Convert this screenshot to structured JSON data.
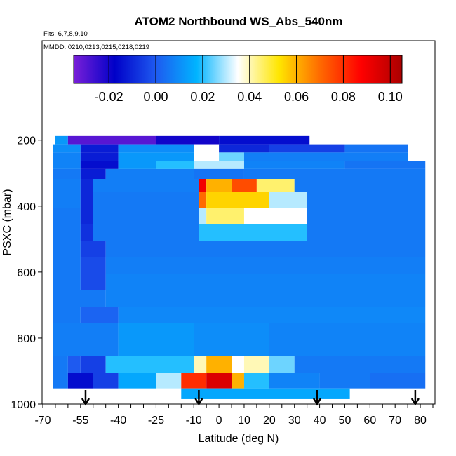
{
  "chart_data": {
    "type": "heatmap",
    "title": "ATOM2 Northbound WS_Abs_540nm",
    "flights_note": "Flts: 6,7,8,9,10",
    "dates_note": "MMDD: 0210,0213,0215,0218,0219",
    "xlabel": "Latitude (deg N)",
    "ylabel": "PSXC (mbar)",
    "xlim": [
      -70,
      85
    ],
    "ylim": [
      1000,
      90
    ],
    "y_reversed": true,
    "x_tick_labels": [
      "-70",
      "-55",
      "-40",
      "-25",
      "-10",
      "0",
      "10",
      "20",
      "30",
      "40",
      "50",
      "60",
      "70",
      "80"
    ],
    "y_tick_labels": [
      "200",
      "400",
      "600",
      "800",
      "1000"
    ],
    "colorbar": {
      "range": [
        -0.035,
        0.105
      ],
      "tick_labels": [
        "-0.02",
        "0.00",
        "0.02",
        "0.04",
        "0.06",
        "0.08",
        "0.10"
      ],
      "stops": [
        "#7a1fd8",
        "#0000c8",
        "#1e5af0",
        "#00b4ff",
        "#ffffff",
        "#ffe600",
        "#ff6a00",
        "#ff0000",
        "#aa0000"
      ]
    },
    "arrow_latitudes": [
      -53,
      -8,
      39,
      78
    ],
    "rows": [
      {
        "p": 200,
        "segs": [
          [
            -65,
            -60,
            0.012
          ],
          [
            -60,
            -25,
            -0.03
          ],
          [
            -25,
            0,
            -0.02
          ],
          [
            0,
            36,
            -0.015
          ]
        ]
      },
      {
        "p": 225,
        "segs": [
          [
            -66,
            -55,
            0.01
          ],
          [
            -55,
            -40,
            -0.012
          ],
          [
            -40,
            -10,
            0.01
          ],
          [
            -10,
            0,
            0.035
          ],
          [
            0,
            20,
            -0.01
          ],
          [
            20,
            50,
            -0.005
          ],
          [
            50,
            75,
            0.005
          ]
        ]
      },
      {
        "p": 250,
        "segs": [
          [
            -66,
            -55,
            0.008
          ],
          [
            -55,
            -40,
            -0.012
          ],
          [
            -40,
            -10,
            0.012
          ],
          [
            -10,
            0,
            0.035
          ],
          [
            0,
            10,
            0.025
          ],
          [
            10,
            75,
            0.007
          ]
        ]
      },
      {
        "p": 275,
        "segs": [
          [
            -66,
            -55,
            0.008
          ],
          [
            -55,
            -40,
            -0.015
          ],
          [
            -40,
            -25,
            0.012
          ],
          [
            -25,
            -10,
            0.02
          ],
          [
            -10,
            10,
            0.03
          ],
          [
            10,
            50,
            0.008
          ],
          [
            50,
            82,
            0.005
          ]
        ]
      },
      {
        "p": 300,
        "segs": [
          [
            -66,
            -55,
            0.006
          ],
          [
            -55,
            -45,
            -0.012
          ],
          [
            -45,
            -10,
            0.007
          ],
          [
            -10,
            10,
            0.005
          ],
          [
            10,
            82,
            0.006
          ]
        ]
      },
      {
        "p": 335,
        "segs": [
          [
            -66,
            -55,
            0.007
          ],
          [
            -55,
            -50,
            -0.01
          ],
          [
            -50,
            -8,
            0.007
          ],
          [
            -8,
            -5,
            0.09
          ],
          [
            -5,
            5,
            0.06
          ],
          [
            5,
            15,
            0.075
          ],
          [
            15,
            30,
            0.045
          ],
          [
            30,
            82,
            0.006
          ]
        ]
      },
      {
        "p": 380,
        "segs": [
          [
            -66,
            -55,
            0.007
          ],
          [
            -55,
            -50,
            -0.01
          ],
          [
            -50,
            -8,
            0.006
          ],
          [
            -8,
            -5,
            0.07
          ],
          [
            -5,
            20,
            0.055
          ],
          [
            20,
            35,
            0.03
          ],
          [
            35,
            82,
            0.006
          ]
        ]
      },
      {
        "p": 430,
        "segs": [
          [
            -66,
            -55,
            0.006
          ],
          [
            -55,
            -50,
            -0.01
          ],
          [
            -50,
            -8,
            0.006
          ],
          [
            -8,
            -5,
            0.03
          ],
          [
            -5,
            10,
            0.045
          ],
          [
            10,
            35,
            0.035
          ],
          [
            35,
            82,
            0.006
          ]
        ]
      },
      {
        "p": 480,
        "segs": [
          [
            -66,
            -55,
            0.006
          ],
          [
            -55,
            -50,
            -0.008
          ],
          [
            -50,
            -8,
            0.006
          ],
          [
            -8,
            35,
            0.02
          ],
          [
            35,
            82,
            0.006
          ]
        ]
      },
      {
        "p": 530,
        "segs": [
          [
            -66,
            -55,
            0.006
          ],
          [
            -55,
            -45,
            -0.005
          ],
          [
            -45,
            82,
            0.006
          ]
        ]
      },
      {
        "p": 580,
        "segs": [
          [
            -66,
            -55,
            0.006
          ],
          [
            -55,
            -45,
            -0.003
          ],
          [
            -45,
            82,
            0.007
          ]
        ]
      },
      {
        "p": 630,
        "segs": [
          [
            -66,
            -55,
            0.006
          ],
          [
            -55,
            -45,
            -0.003
          ],
          [
            -45,
            82,
            0.008
          ]
        ]
      },
      {
        "p": 680,
        "segs": [
          [
            -66,
            -45,
            0.006
          ],
          [
            -45,
            82,
            0.008
          ]
        ]
      },
      {
        "p": 730,
        "segs": [
          [
            -66,
            -55,
            0.006
          ],
          [
            -55,
            -40,
            0.002
          ],
          [
            -40,
            82,
            0.009
          ]
        ]
      },
      {
        "p": 780,
        "segs": [
          [
            -66,
            -40,
            0.007
          ],
          [
            -40,
            -10,
            0.012
          ],
          [
            -10,
            20,
            0.01
          ],
          [
            20,
            82,
            0.008
          ]
        ]
      },
      {
        "p": 830,
        "segs": [
          [
            -66,
            -40,
            0.007
          ],
          [
            -40,
            -10,
            0.012
          ],
          [
            -10,
            20,
            0.01
          ],
          [
            20,
            82,
            0.008
          ]
        ]
      },
      {
        "p": 880,
        "segs": [
          [
            -66,
            -60,
            0.006
          ],
          [
            -60,
            -55,
            0.0
          ],
          [
            -55,
            -45,
            -0.005
          ],
          [
            -45,
            -10,
            0.02
          ],
          [
            -10,
            -5,
            0.04
          ],
          [
            -5,
            5,
            0.06
          ],
          [
            5,
            10,
            0.035
          ],
          [
            10,
            20,
            0.04
          ],
          [
            20,
            30,
            0.025
          ],
          [
            30,
            82,
            0.006
          ]
        ]
      },
      {
        "p": 930,
        "segs": [
          [
            -66,
            -60,
            0.006
          ],
          [
            -60,
            -50,
            -0.015
          ],
          [
            -50,
            -40,
            -0.005
          ],
          [
            -40,
            -25,
            0.015
          ],
          [
            -25,
            -15,
            0.03
          ],
          [
            -15,
            -5,
            0.08
          ],
          [
            -5,
            5,
            0.095
          ],
          [
            5,
            10,
            0.06
          ],
          [
            10,
            20,
            0.02
          ],
          [
            20,
            40,
            0.008
          ],
          [
            40,
            60,
            0.006
          ],
          [
            60,
            82,
            0.004
          ]
        ]
      },
      {
        "p": 975,
        "segs": [
          [
            -15,
            52,
            0.015
          ]
        ]
      }
    ]
  }
}
